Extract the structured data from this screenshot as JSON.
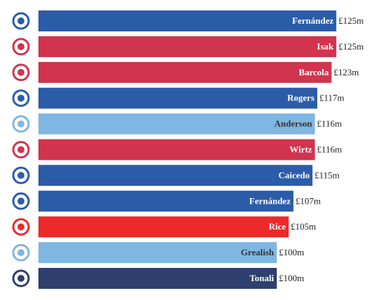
{
  "chart_data": {
    "type": "bar",
    "orientation": "horizontal",
    "categories": [
      "Fernández",
      "Isak",
      "Barcola",
      "Rogers",
      "Anderson",
      "Wirtz",
      "Caicedo",
      "Fernández",
      "Rice",
      "Grealish",
      "Tonali"
    ],
    "values": [
      125,
      125,
      123,
      117,
      116,
      116,
      115,
      107,
      105,
      100,
      100
    ],
    "value_labels": [
      "£125m",
      "£125m",
      "£123m",
      "£117m",
      "£116m",
      "£116m",
      "£115m",
      "£107m",
      "£105m",
      "£100m",
      "£100m"
    ],
    "colors": [
      "#2b5ca8",
      "#d0344f",
      "#d0344f",
      "#2b5ca8",
      "#80b6e2",
      "#d0344f",
      "#2b5ca8",
      "#2b5ca8",
      "#ec2a2a",
      "#80b6e2",
      "#2f3f6f"
    ]
  }
}
